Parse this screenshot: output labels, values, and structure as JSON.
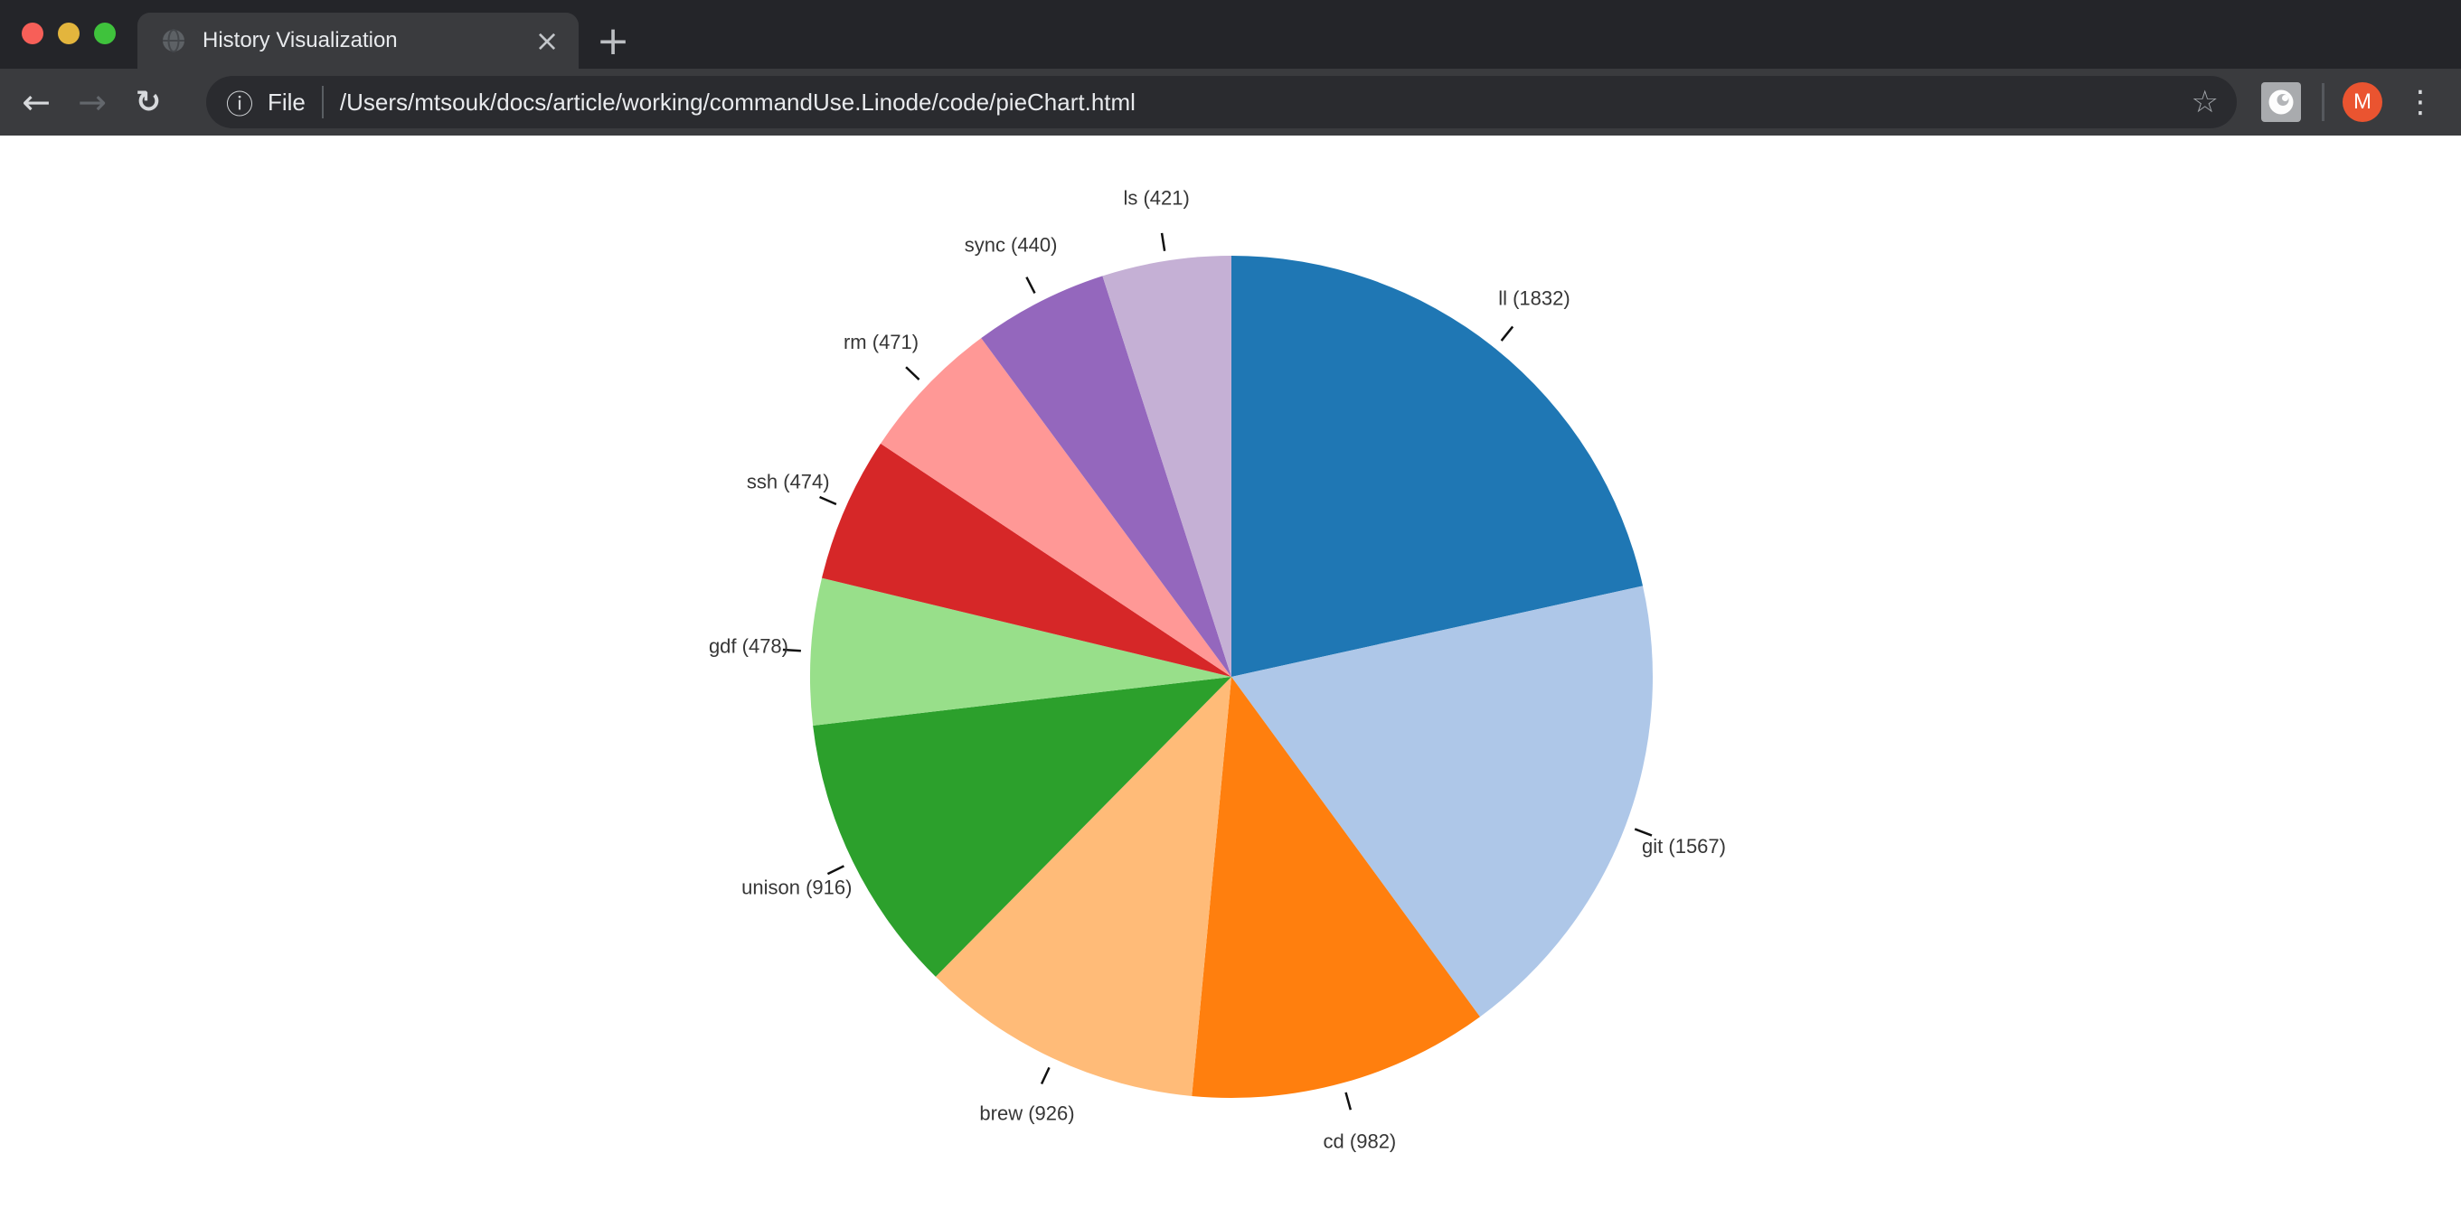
{
  "browser": {
    "window_controls": {
      "close_color": "#f75f58",
      "minimize_color": "#e3b53d",
      "zoom_color": "#3fc23c"
    },
    "tab": {
      "title": "History Visualization",
      "close_glyph": "×",
      "new_tab_glyph": "+"
    },
    "toolbar": {
      "back_glyph": "←",
      "forward_glyph": "→",
      "reload_glyph": "↻",
      "page_info_glyph": "ⓘ",
      "scheme_label": "File",
      "url": "/Users/mtsouk/docs/article/working/commandUse.Linode/code/pieChart.html",
      "bookmark_glyph": "☆",
      "menu_glyph": "⋮",
      "avatar_letter": "M",
      "avatar_color": "#ea5430"
    }
  },
  "chart_data": {
    "type": "pie",
    "start_angle_deg": 0,
    "direction": "clockwise",
    "legend": "none",
    "total": 8507,
    "slices": [
      {
        "label": "ll",
        "value": 1832,
        "display": "ll (1832)",
        "color": "#1f77b4"
      },
      {
        "label": "git",
        "value": 1567,
        "display": "git (1567)",
        "color": "#aec7e8"
      },
      {
        "label": "cd",
        "value": 982,
        "display": "cd (982)",
        "color": "#ff7f0e"
      },
      {
        "label": "brew",
        "value": 926,
        "display": "brew (926)",
        "color": "#ffbb78"
      },
      {
        "label": "unison",
        "value": 916,
        "display": "unison (916)",
        "color": "#2ca02c"
      },
      {
        "label": "gdf",
        "value": 478,
        "display": "gdf (478)",
        "color": "#98df8a"
      },
      {
        "label": "ssh",
        "value": 474,
        "display": "ssh (474)",
        "color": "#d62728"
      },
      {
        "label": "rm",
        "value": 471,
        "display": "rm (471)",
        "color": "#ff9896"
      },
      {
        "label": "sync",
        "value": 440,
        "display": "sync (440)",
        "color": "#9467bd"
      },
      {
        "label": "ls",
        "value": 421,
        "display": "ls (421)",
        "color": "#c5b0d5"
      }
    ]
  }
}
